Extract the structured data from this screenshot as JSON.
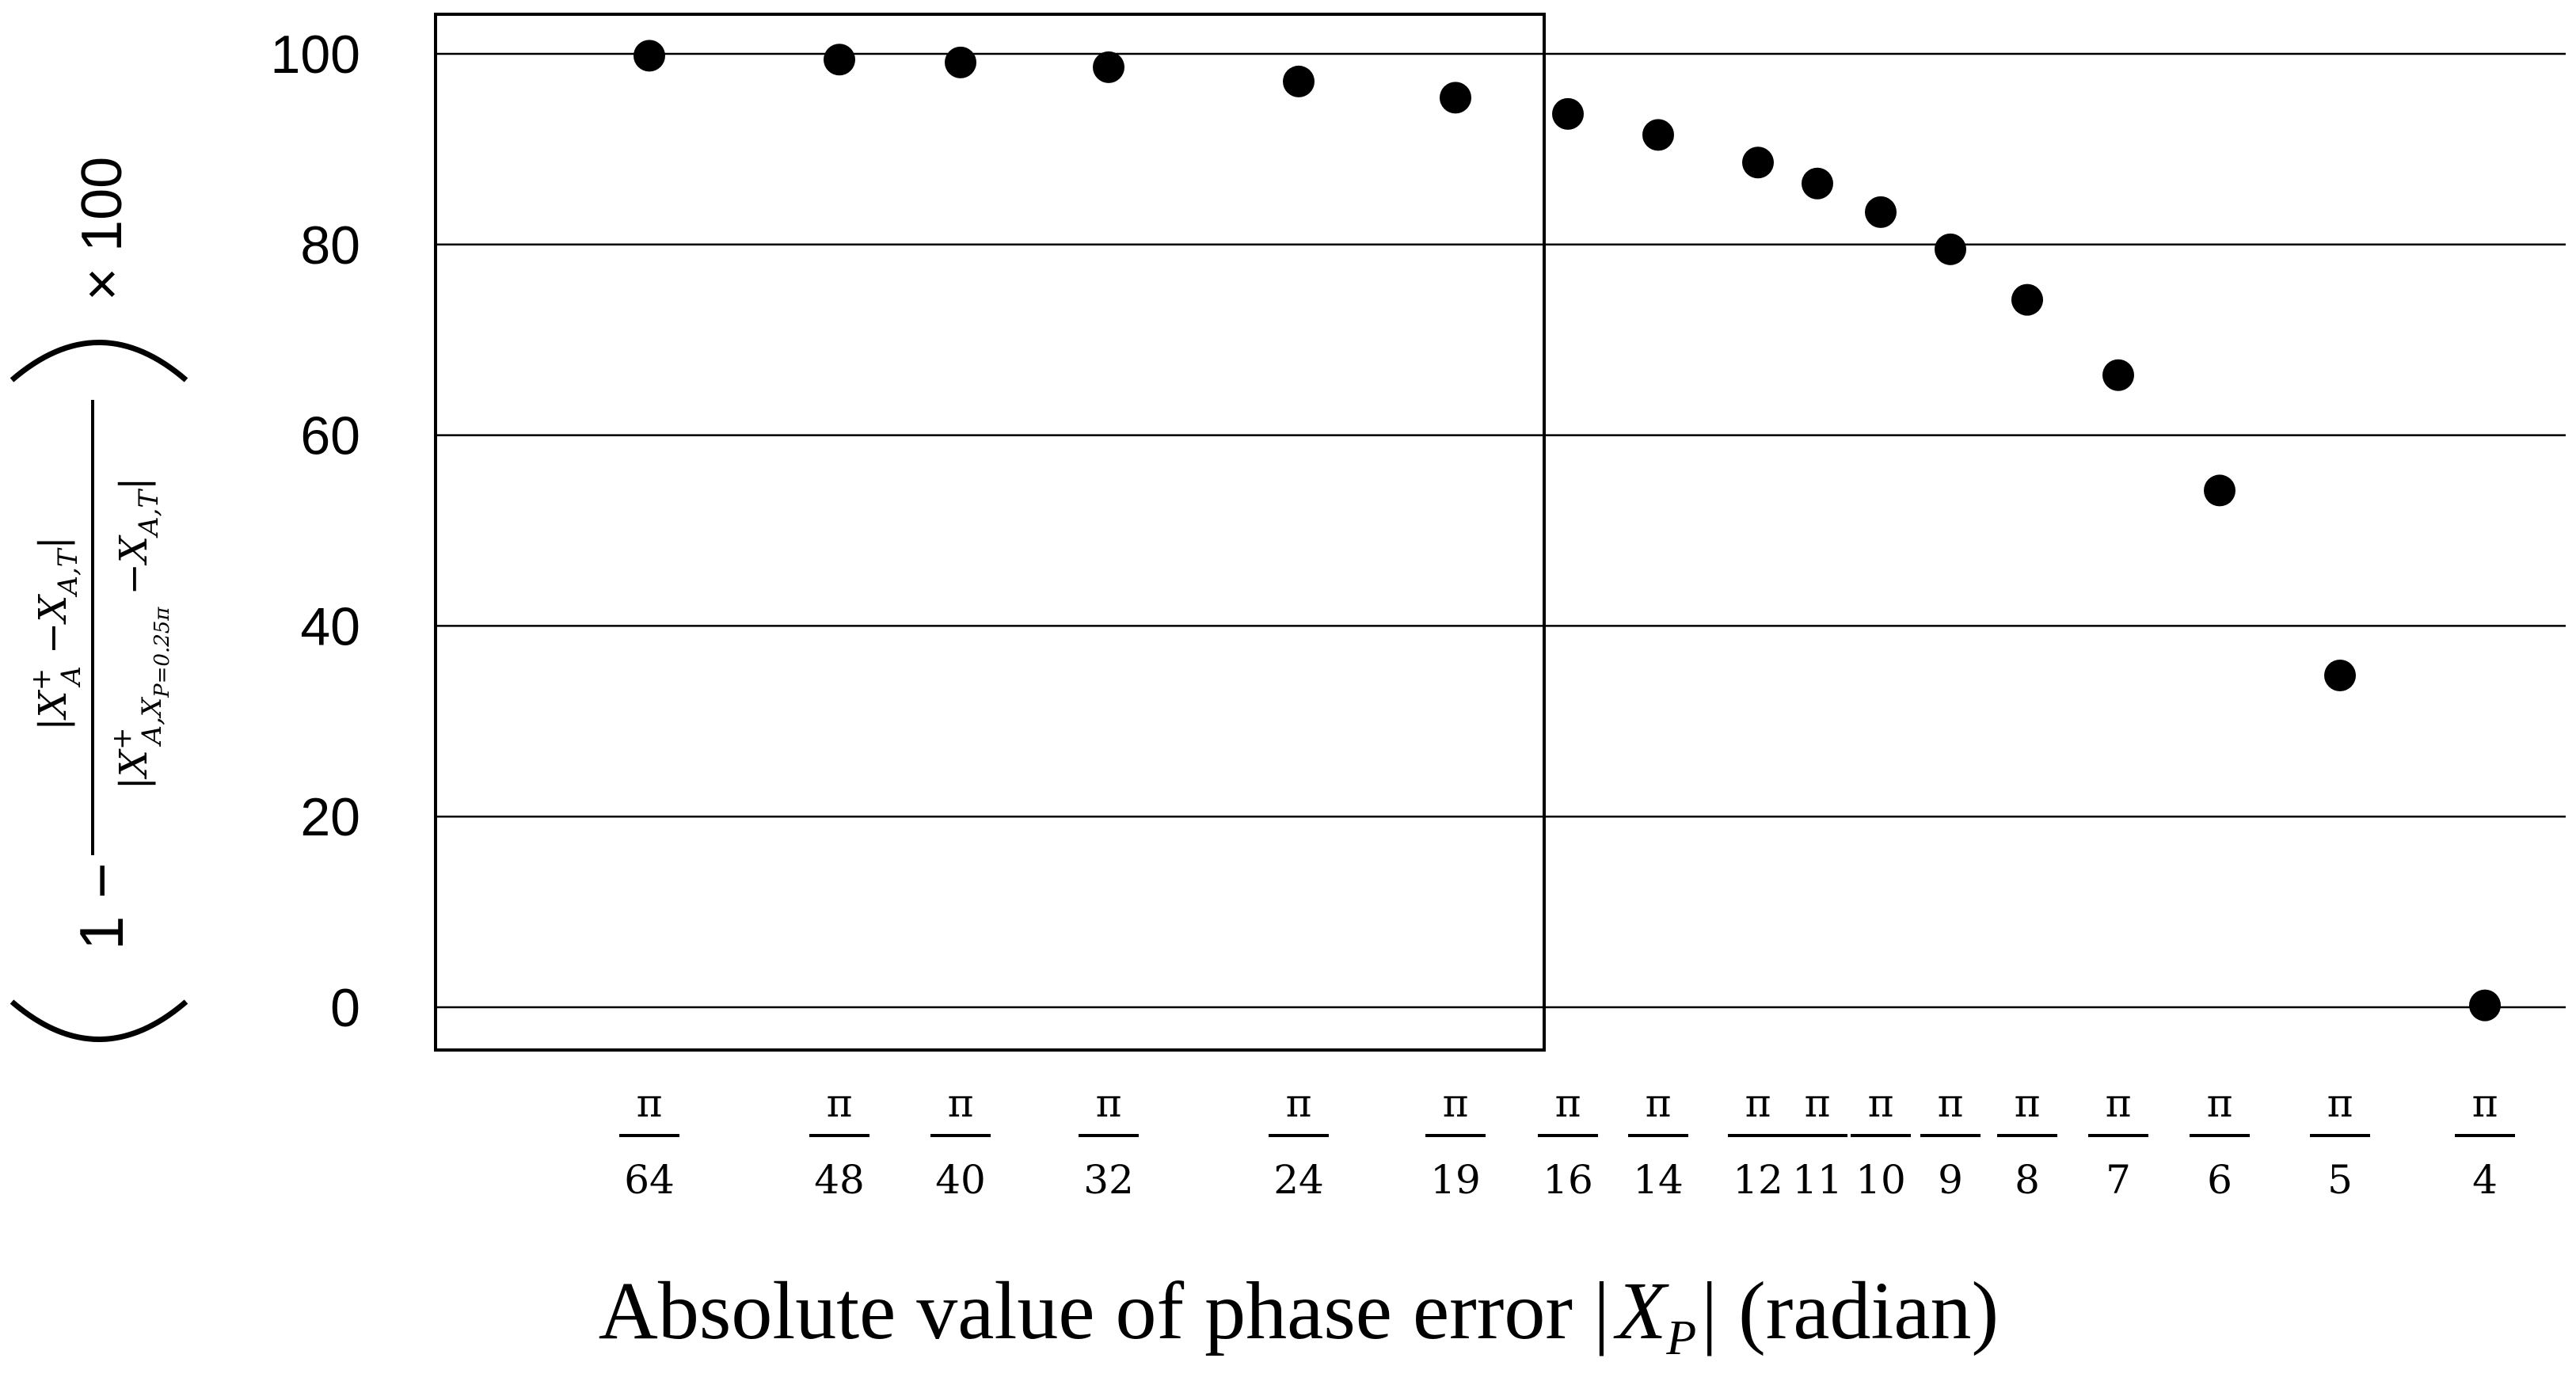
{
  "chart_data": {
    "type": "scatter",
    "x_axis_scale": "categorical, ordered by phase error",
    "categories": [
      "π/64",
      "π/48",
      "π/40",
      "π/32",
      "π/24",
      "π/19",
      "π/16",
      "π/14",
      "π/12",
      "π/11",
      "π/10",
      "π/9",
      "π/8",
      "π/7",
      "π/6",
      "π/5",
      "π/4"
    ],
    "x_numerators": [
      "π",
      "π",
      "π",
      "π",
      "π",
      "π",
      "π",
      "π",
      "π",
      "π",
      "π",
      "π",
      "π",
      "π",
      "π",
      "π",
      "π"
    ],
    "x_denominators": [
      "64",
      "48",
      "40",
      "32",
      "24",
      "19",
      "16",
      "14",
      "12",
      "11",
      "10",
      "9",
      "8",
      "7",
      "6",
      "5",
      "4"
    ],
    "values": [
      99.8,
      99.4,
      99.1,
      98.6,
      97.1,
      95.4,
      93.7,
      91.5,
      88.6,
      86.4,
      83.4,
      79.5,
      74.2,
      66.3,
      54.2,
      34.8,
      0.2
    ],
    "xlabel_parts": {
      "before": "Absolute value of phase error ",
      "bar_left": "|",
      "symbol": "X",
      "subscript": "P",
      "bar_right": "|",
      "after": "  (radian)"
    },
    "ylabel_parts": {
      "lead": "1 −",
      "numerator": "|X",
      "numerator_sup": "+",
      "numerator_sub": "A",
      "numerator_rest": " −X",
      "numerator_rest_sub": "A,T",
      "numerator_close": "|",
      "denominator": "|X",
      "denominator_sup": "+",
      "denominator_sub": "A,X",
      "denominator_sub2": "P=0.25π",
      "denominator_rest": " −X",
      "denominator_rest_sub": "A,T",
      "denominator_close": "|",
      "times": "× 100"
    },
    "yticks": [
      "0",
      "20",
      "40",
      "60",
      "80",
      "100"
    ],
    "ylim": [
      0,
      100
    ],
    "grid": true,
    "legend": "none",
    "marker_color": "#000000"
  }
}
